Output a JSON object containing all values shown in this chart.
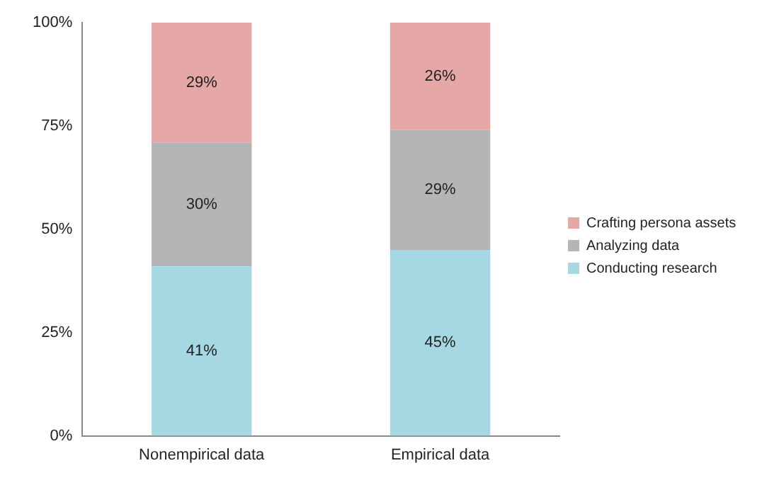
{
  "chart_data": {
    "type": "bar",
    "stacked": true,
    "categories": [
      "Nonempirical data",
      "Empirical data"
    ],
    "series": [
      {
        "name": "Conducting research",
        "color": "#a6d8e3",
        "values": [
          41,
          45
        ],
        "value_labels": [
          "41%",
          "45%"
        ]
      },
      {
        "name": "Analyzing data",
        "color": "#b5b5b5",
        "values": [
          30,
          29
        ],
        "value_labels": [
          "30%",
          "29%"
        ]
      },
      {
        "name": "Crafting persona assets",
        "color": "#e6a7a7",
        "values": [
          29,
          26
        ],
        "value_labels": [
          "29%",
          "26%"
        ]
      }
    ],
    "ylim": [
      0,
      100
    ],
    "yticks": [
      {
        "value": 0,
        "label": "0%"
      },
      {
        "value": 25,
        "label": "25%"
      },
      {
        "value": 50,
        "label": "50%"
      },
      {
        "value": 75,
        "label": "75%"
      },
      {
        "value": 100,
        "label": "100%"
      }
    ],
    "grid": false,
    "legend": "right"
  }
}
